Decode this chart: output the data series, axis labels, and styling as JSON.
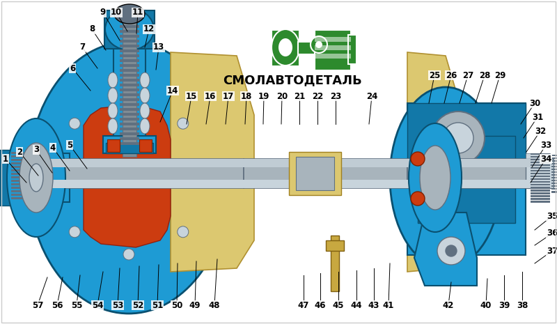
{
  "title": "СМОЛАВТОДЕТАЛЬ",
  "background_color": "#ffffff",
  "title_color": "#000000",
  "title_fontsize": 13,
  "title_bold": true,
  "logo_color": "#2d8a2d",
  "border_color": "#cccccc",
  "label_color": "#000000",
  "label_fontsize": 8.5,
  "figsize": [
    8.0,
    4.65
  ],
  "dpi": 100,
  "colors": {
    "blue": "#1e9bd4",
    "blue2": "#1278a8",
    "darkblue": "#0a5070",
    "cyan": "#40c0e8",
    "gray": "#a8b4bc",
    "lgray": "#c8d4dc",
    "dgray": "#607080",
    "orange": "#cc3c10",
    "yellow": "#c8a840",
    "lyellow": "#dcc870",
    "white": "#ffffff",
    "black": "#000000",
    "silver": "#c0ccd4",
    "darksilver": "#808c94"
  }
}
